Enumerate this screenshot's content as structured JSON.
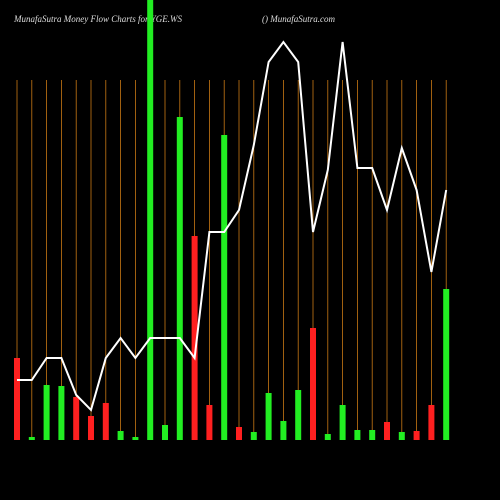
{
  "chart_data": {
    "type": "bar",
    "title": "MunafaSutra  Money Flow  Charts for YGE.WS",
    "subtitle": "() MunafaSutra.com",
    "values": [
      82,
      3,
      55,
      54,
      43,
      24,
      37,
      9,
      3,
      440,
      15,
      323,
      204,
      35,
      305,
      13,
      8,
      47,
      19,
      50,
      112,
      6,
      35,
      10,
      10,
      18,
      8,
      9,
      35,
      151
    ],
    "colors": [
      "#ff2020",
      "#22ee22",
      "#22ee22",
      "#22ee22",
      "#ff2020",
      "#ff2020",
      "#ff2020",
      "#22ee22",
      "#22ee22",
      "#22ee22",
      "#22ee22",
      "#22ee22",
      "#ff2020",
      "#ff2020",
      "#22ee22",
      "#ff2020",
      "#22ee22",
      "#22ee22",
      "#22ee22",
      "#22ee22",
      "#ff2020",
      "#22ee22",
      "#22ee22",
      "#22ee22",
      "#22ee22",
      "#ff2020",
      "#22ee22",
      "#ff2020",
      "#ff2020",
      "#22ee22"
    ],
    "line": {
      "color": "#ffffff",
      "values": [
        60,
        60,
        82,
        82,
        45,
        30,
        82,
        102,
        82,
        102,
        102,
        102,
        82,
        208,
        208,
        230,
        295,
        378,
        398,
        378,
        208,
        270,
        398,
        272,
        272,
        230,
        292,
        250,
        168,
        250
      ]
    },
    "grid_color": "#c87814",
    "ylim": [
      0,
      440
    ]
  }
}
